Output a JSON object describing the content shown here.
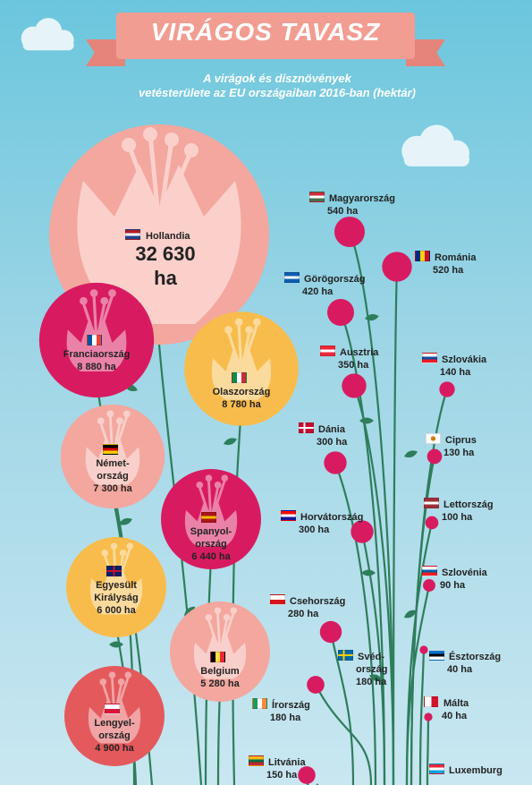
{
  "header": {
    "title": "VIRÁGOS TAVASZ",
    "subtitle_line1": "A virágok és dísznövények",
    "subtitle_line2": "vetésterülete az EU országaiban 2016-ban (hektár)"
  },
  "chart_data": {
    "type": "bubble",
    "title": "VIRÁGOS TAVASZ",
    "subtitle": "A virágok és dísznövények vetésterülete az EU országaiban 2016-ban (hektár)",
    "unit": "ha",
    "series": [
      {
        "country": "Hollandia",
        "label_lines": [
          "Hollandia"
        ],
        "value": 32630,
        "value_text_lines": [
          "32 630",
          "ha"
        ],
        "flag": [
          "#ae1c28",
          "#ffffff",
          "#21468b"
        ],
        "flag_dir": "h",
        "color": "#f3a79e"
      },
      {
        "country": "Franciaország",
        "label_lines": [
          "Franciaország"
        ],
        "value": 8880,
        "value_text": "8 880 ha",
        "flag": [
          "#0055a4",
          "#ffffff",
          "#ef4135"
        ],
        "flag_dir": "v",
        "color": "#d81b60"
      },
      {
        "country": "Olaszország",
        "label_lines": [
          "Olaszország"
        ],
        "value": 8780,
        "value_text": "8 780 ha",
        "flag": [
          "#009246",
          "#ffffff",
          "#ce2b37"
        ],
        "flag_dir": "v",
        "color": "#f8bc4c"
      },
      {
        "country": "Németország",
        "label_lines": [
          "Német-",
          "ország"
        ],
        "value": 7300,
        "value_text": "7 300 ha",
        "flag": [
          "#000000",
          "#dd0000",
          "#ffce00"
        ],
        "flag_dir": "h",
        "color": "#f3a79e"
      },
      {
        "country": "Spanyolország",
        "label_lines": [
          "Spanyol-",
          "ország"
        ],
        "value": 6440,
        "value_text": "6 440 ha",
        "flag": [
          "#aa151b",
          "#f1bf00",
          "#aa151b"
        ],
        "flag_dir": "h",
        "color": "#d81b60"
      },
      {
        "country": "Egyesült Királyság",
        "label_lines": [
          "Egyesült",
          "Királyság"
        ],
        "value": 6000,
        "value_text": "6 000 ha",
        "flag": [
          "#012169",
          "#ffffff",
          "#c8102e"
        ],
        "flag_dir": "uk",
        "color": "#f8bc4c"
      },
      {
        "country": "Belgium",
        "label_lines": [
          "Belgium"
        ],
        "value": 5280,
        "value_text": "5 280 ha",
        "flag": [
          "#000000",
          "#fae042",
          "#ed2939"
        ],
        "flag_dir": "v",
        "color": "#f3a79e"
      },
      {
        "country": "Lengyelország",
        "label_lines": [
          "Lengyel-",
          "ország"
        ],
        "value": 4900,
        "value_text": "4 900 ha",
        "flag": [
          "#ffffff",
          "#dc143c"
        ],
        "flag_dir": "h",
        "color": "#e4595c"
      },
      {
        "country": "Magyarország",
        "label_lines": [
          "Magyarország"
        ],
        "value": 540,
        "value_text": "540 ha",
        "flag": [
          "#ce2939",
          "#ffffff",
          "#477050"
        ],
        "flag_dir": "h",
        "color": "#d81b60"
      },
      {
        "country": "Románia",
        "label_lines": [
          "Románia"
        ],
        "value": 520,
        "value_text": "520 ha",
        "flag": [
          "#002b7f",
          "#fcd116",
          "#ce1126"
        ],
        "flag_dir": "v",
        "color": "#d81b60"
      },
      {
        "country": "Görögország",
        "label_lines": [
          "Görögország"
        ],
        "value": 420,
        "value_text": "420 ha",
        "flag": [
          "#0d5eaf",
          "#ffffff",
          "#0d5eaf"
        ],
        "flag_dir": "h",
        "color": "#d81b60"
      },
      {
        "country": "Ausztria",
        "label_lines": [
          "Ausztria"
        ],
        "value": 350,
        "value_text": "350 ha",
        "flag": [
          "#ed2939",
          "#ffffff",
          "#ed2939"
        ],
        "flag_dir": "h",
        "color": "#d81b60"
      },
      {
        "country": "Szlovákia",
        "label_lines": [
          "Szlovákia"
        ],
        "value": 140,
        "value_text": "140 ha",
        "flag": [
          "#ffffff",
          "#0b4ea2",
          "#ee1c25"
        ],
        "flag_dir": "h",
        "color": "#d81b60"
      },
      {
        "country": "Dánia",
        "label_lines": [
          "Dánia"
        ],
        "value": 300,
        "value_text": "300 ha",
        "flag": [
          "#c60c30",
          "#ffffff"
        ],
        "flag_dir": "nordic",
        "color": "#d81b60"
      },
      {
        "country": "Ciprus",
        "label_lines": [
          "Ciprus"
        ],
        "value": 130,
        "value_text": "130 ha",
        "flag": [
          "#ffffff",
          "#d57800"
        ],
        "flag_dir": "cy",
        "color": "#d81b60"
      },
      {
        "country": "Lettország",
        "label_lines": [
          "Lettország"
        ],
        "value": 100,
        "value_text": "100 ha",
        "flag": [
          "#9e3039",
          "#ffffff",
          "#9e3039"
        ],
        "flag_dir": "h",
        "color": "#d81b60"
      },
      {
        "country": "Horvátország",
        "label_lines": [
          "Horvátország"
        ],
        "value": 300,
        "value_text": "300 ha",
        "flag": [
          "#ff0000",
          "#ffffff",
          "#171796"
        ],
        "flag_dir": "h",
        "color": "#d81b60"
      },
      {
        "country": "Szlovénia",
        "label_lines": [
          "Szlovénia"
        ],
        "value": 90,
        "value_text": "90 ha",
        "flag": [
          "#ffffff",
          "#005da4",
          "#ed1c24"
        ],
        "flag_dir": "h",
        "color": "#d81b60"
      },
      {
        "country": "Csehország",
        "label_lines": [
          "Csehország"
        ],
        "value": 280,
        "value_text": "280 ha",
        "flag": [
          "#ffffff",
          "#d7141a"
        ],
        "flag_dir": "cz",
        "color": "#d81b60"
      },
      {
        "country": "Svédország",
        "label_lines": [
          "Svéd-",
          "ország"
        ],
        "value": 180,
        "value_text": "180 ha",
        "flag": [
          "#006aa7",
          "#fecc00"
        ],
        "flag_dir": "nordic",
        "color": "#d81b60"
      },
      {
        "country": "Észtország",
        "label_lines": [
          "Észtország"
        ],
        "value": 40,
        "value_text": "40 ha",
        "flag": [
          "#0072ce",
          "#000000",
          "#ffffff"
        ],
        "flag_dir": "h",
        "color": "#d81b60"
      },
      {
        "country": "Írország",
        "label_lines": [
          "Írország"
        ],
        "value": 180,
        "value_text": "180 ha",
        "flag": [
          "#169b62",
          "#ffffff",
          "#ff883e"
        ],
        "flag_dir": "v",
        "color": "#d81b60"
      },
      {
        "country": "Málta",
        "label_lines": [
          "Málta"
        ],
        "value": 40,
        "value_text": "40 ha",
        "flag": [
          "#ffffff",
          "#cf142b"
        ],
        "flag_dir": "v2",
        "color": "#d81b60"
      },
      {
        "country": "Litvánia",
        "label_lines": [
          "Litvánia"
        ],
        "value": 150,
        "value_text": "150 ha",
        "flag": [
          "#fdb913",
          "#006a44",
          "#c1272d"
        ],
        "flag_dir": "h",
        "color": "#d81b60"
      },
      {
        "country": "Luxemburg",
        "label_lines": [
          "Luxemburg"
        ],
        "value": null,
        "value_text": "",
        "flag": [
          "#ed2939",
          "#ffffff",
          "#00a1de"
        ],
        "flag_dir": "h",
        "color": "#d81b60"
      }
    ]
  }
}
